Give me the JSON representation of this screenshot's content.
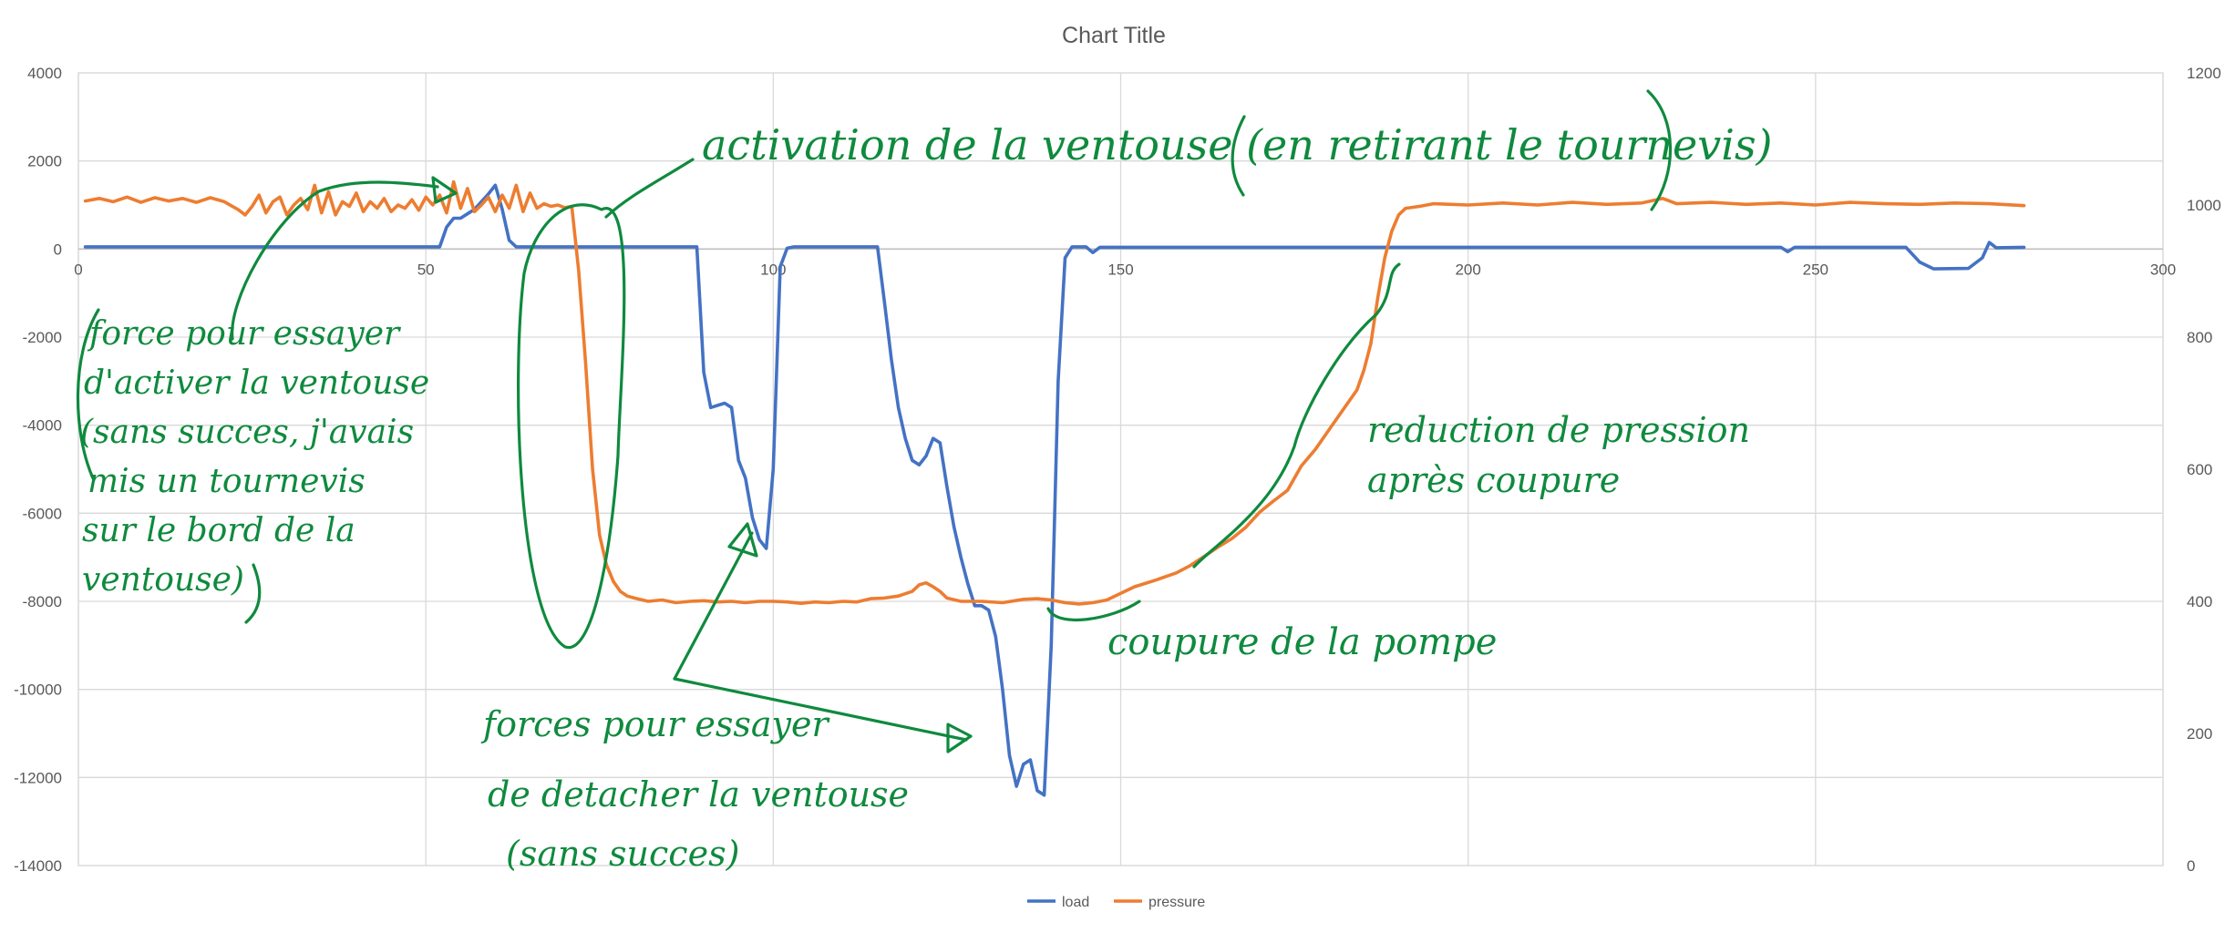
{
  "chart_data": {
    "type": "line",
    "title": "Chart Title",
    "xlabel": "",
    "ylabel": "",
    "xlim": [
      0,
      300
    ],
    "ylim": [
      -14000,
      4000
    ],
    "y2lim": [
      0,
      1200
    ],
    "x_ticks": [
      "0",
      "50",
      "100",
      "150",
      "200",
      "250",
      "300"
    ],
    "y_ticks": [
      "4000",
      "2000",
      "0",
      "-2000",
      "-4000",
      "-6000",
      "-8000",
      "-10000",
      "-12000",
      "-14000"
    ],
    "y2_ticks": [
      "1200",
      "1000",
      "800",
      "600",
      "400",
      "200",
      "0"
    ],
    "grid": true,
    "legend_position": "bottom",
    "series": [
      {
        "name": "load",
        "axis": "left",
        "color": "#4472c4",
        "points": [
          [
            1,
            50
          ],
          [
            52,
            50
          ],
          [
            53,
            500
          ],
          [
            54,
            700
          ],
          [
            55,
            700
          ],
          [
            57,
            900
          ],
          [
            59,
            1250
          ],
          [
            60,
            1450
          ],
          [
            61,
            900
          ],
          [
            62,
            200
          ],
          [
            63,
            50
          ],
          [
            89,
            50
          ],
          [
            90,
            -2800
          ],
          [
            91,
            -3600
          ],
          [
            93,
            -3500
          ],
          [
            94,
            -3600
          ],
          [
            95,
            -4800
          ],
          [
            96,
            -5200
          ],
          [
            97,
            -6100
          ],
          [
            98,
            -6600
          ],
          [
            99,
            -6800
          ],
          [
            100,
            -5000
          ],
          [
            101,
            -400
          ],
          [
            102,
            20
          ],
          [
            103,
            50
          ],
          [
            115,
            50
          ],
          [
            116,
            -1200
          ],
          [
            117,
            -2500
          ],
          [
            118,
            -3600
          ],
          [
            119,
            -4300
          ],
          [
            120,
            -4800
          ],
          [
            121,
            -4900
          ],
          [
            122,
            -4700
          ],
          [
            123,
            -4300
          ],
          [
            124,
            -4400
          ],
          [
            125,
            -5400
          ],
          [
            126,
            -6300
          ],
          [
            127,
            -7000
          ],
          [
            128,
            -7600
          ],
          [
            129,
            -8100
          ],
          [
            130,
            -8100
          ],
          [
            131,
            -8200
          ],
          [
            132,
            -8800
          ],
          [
            133,
            -10000
          ],
          [
            134,
            -11500
          ],
          [
            135,
            -12200
          ],
          [
            136,
            -11700
          ],
          [
            137,
            -11600
          ],
          [
            138,
            -12300
          ],
          [
            139,
            -12400
          ],
          [
            140,
            -9000
          ],
          [
            141,
            -3000
          ],
          [
            142,
            -200
          ],
          [
            143,
            50
          ],
          [
            145,
            50
          ],
          [
            146,
            -80
          ],
          [
            147,
            40
          ],
          [
            200,
            40
          ],
          [
            245,
            40
          ],
          [
            246,
            -60
          ],
          [
            247,
            40
          ],
          [
            263,
            40
          ],
          [
            265,
            -300
          ],
          [
            267,
            -450
          ],
          [
            272,
            -440
          ],
          [
            274,
            -200
          ],
          [
            275,
            150
          ],
          [
            276,
            30
          ],
          [
            280,
            40
          ]
        ]
      },
      {
        "name": "pressure",
        "axis": "right",
        "color": "#ed7d31",
        "points": [
          [
            1,
            1006
          ],
          [
            3,
            1010
          ],
          [
            5,
            1005
          ],
          [
            7,
            1012
          ],
          [
            9,
            1004
          ],
          [
            11,
            1011
          ],
          [
            13,
            1006
          ],
          [
            15,
            1010
          ],
          [
            17,
            1004
          ],
          [
            19,
            1011
          ],
          [
            21,
            1005
          ],
          [
            23,
            993
          ],
          [
            24,
            985
          ],
          [
            25,
            998
          ],
          [
            26,
            1015
          ],
          [
            27,
            988
          ],
          [
            28,
            1005
          ],
          [
            29,
            1012
          ],
          [
            30,
            985
          ],
          [
            31,
            1000
          ],
          [
            32,
            1010
          ],
          [
            33,
            993
          ],
          [
            34,
            1030
          ],
          [
            35,
            988
          ],
          [
            36,
            1020
          ],
          [
            37,
            985
          ],
          [
            38,
            1005
          ],
          [
            39,
            998
          ],
          [
            40,
            1018
          ],
          [
            41,
            990
          ],
          [
            42,
            1005
          ],
          [
            43,
            995
          ],
          [
            44,
            1010
          ],
          [
            45,
            990
          ],
          [
            46,
            1000
          ],
          [
            47,
            995
          ],
          [
            48,
            1008
          ],
          [
            49,
            992
          ],
          [
            50,
            1012
          ],
          [
            51,
            1000
          ],
          [
            52,
            1015
          ],
          [
            53,
            988
          ],
          [
            54,
            1035
          ],
          [
            55,
            995
          ],
          [
            56,
            1025
          ],
          [
            57,
            990
          ],
          [
            58,
            1000
          ],
          [
            59,
            1012
          ],
          [
            60,
            990
          ],
          [
            61,
            1015
          ],
          [
            62,
            995
          ],
          [
            63,
            1030
          ],
          [
            64,
            990
          ],
          [
            65,
            1018
          ],
          [
            66,
            995
          ],
          [
            67,
            1002
          ],
          [
            68,
            998
          ],
          [
            69,
            1000
          ],
          [
            70,
            996
          ],
          [
            71,
            998
          ],
          [
            72,
            900
          ],
          [
            73,
            760
          ],
          [
            74,
            600
          ],
          [
            75,
            500
          ],
          [
            76,
            455
          ],
          [
            77,
            430
          ],
          [
            78,
            415
          ],
          [
            79,
            408
          ],
          [
            80,
            405
          ],
          [
            82,
            400
          ],
          [
            84,
            402
          ],
          [
            86,
            398
          ],
          [
            88,
            400
          ],
          [
            90,
            401
          ],
          [
            92,
            399
          ],
          [
            94,
            400
          ],
          [
            96,
            398
          ],
          [
            98,
            400
          ],
          [
            100,
            400
          ],
          [
            102,
            399
          ],
          [
            104,
            397
          ],
          [
            106,
            399
          ],
          [
            108,
            398
          ],
          [
            110,
            400
          ],
          [
            112,
            399
          ],
          [
            114,
            404
          ],
          [
            116,
            405
          ],
          [
            118,
            408
          ],
          [
            120,
            415
          ],
          [
            121,
            425
          ],
          [
            122,
            428
          ],
          [
            123,
            422
          ],
          [
            124,
            415
          ],
          [
            125,
            405
          ],
          [
            127,
            400
          ],
          [
            130,
            400
          ],
          [
            133,
            398
          ],
          [
            136,
            403
          ],
          [
            138,
            404
          ],
          [
            140,
            402
          ],
          [
            142,
            398
          ],
          [
            144,
            396
          ],
          [
            146,
            398
          ],
          [
            148,
            402
          ],
          [
            150,
            412
          ],
          [
            152,
            422
          ],
          [
            155,
            432
          ],
          [
            158,
            443
          ],
          [
            160,
            454
          ],
          [
            162,
            468
          ],
          [
            164,
            482
          ],
          [
            166,
            495
          ],
          [
            168,
            512
          ],
          [
            170,
            535
          ],
          [
            172,
            552
          ],
          [
            174,
            568
          ],
          [
            176,
            605
          ],
          [
            178,
            630
          ],
          [
            180,
            660
          ],
          [
            182,
            690
          ],
          [
            184,
            720
          ],
          [
            185,
            750
          ],
          [
            186,
            790
          ],
          [
            187,
            860
          ],
          [
            188,
            920
          ],
          [
            189,
            960
          ],
          [
            190,
            985
          ],
          [
            191,
            995
          ],
          [
            193,
            998
          ],
          [
            195,
            1002
          ],
          [
            200,
            1000
          ],
          [
            205,
            1003
          ],
          [
            210,
            1000
          ],
          [
            215,
            1004
          ],
          [
            220,
            1001
          ],
          [
            225,
            1003
          ],
          [
            228,
            1010
          ],
          [
            230,
            1002
          ],
          [
            235,
            1004
          ],
          [
            240,
            1001
          ],
          [
            245,
            1003
          ],
          [
            250,
            1000
          ],
          [
            255,
            1004
          ],
          [
            260,
            1002
          ],
          [
            265,
            1001
          ],
          [
            270,
            1003
          ],
          [
            275,
            1002
          ],
          [
            280,
            999
          ]
        ]
      }
    ]
  },
  "annotations": [
    "activation de la ventouse (en retirant le tournevis)",
    "force pour essayer",
    "d'activer la ventouse",
    "(sans succes, j'avais",
    "mis un tournevis",
    "sur le bord de la",
    "ventouse)",
    "forces pour essayer",
    "de detacher la ventouse",
    "(sans succes)",
    "reduction de pression",
    "après coupure",
    "coupure de la pompe"
  ]
}
